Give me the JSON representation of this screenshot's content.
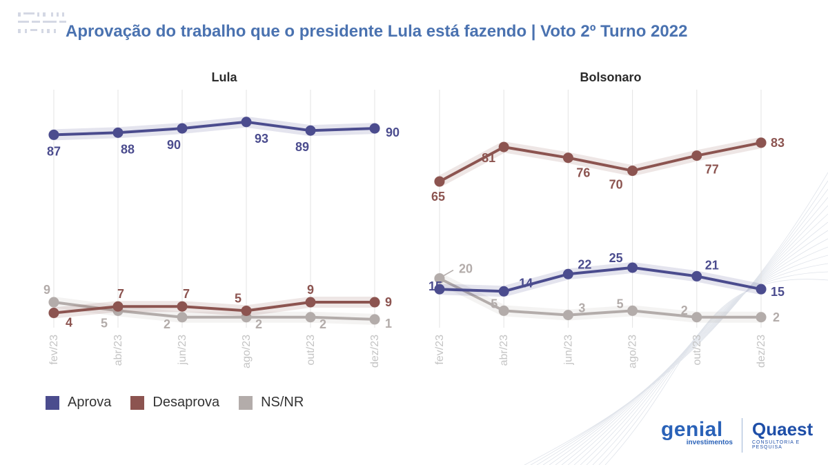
{
  "title": "Aprovação do trabalho que o presidente Lula está fazendo | Voto 2º Turno 2022",
  "colors": {
    "title": "#4a72b0",
    "aprova": "#4b4c8e",
    "desaprova": "#8c5450",
    "nsnr": "#b3acaa",
    "grid": "#e3e3e3",
    "axis_label": "#c4c4c4"
  },
  "legend": [
    {
      "label": "Aprova",
      "color": "#4b4c8e"
    },
    {
      "label": "Desaprova",
      "color": "#8c5450"
    },
    {
      "label": "NS/NR",
      "color": "#b3acaa"
    }
  ],
  "logos": {
    "genial_main": "genial",
    "genial_sub": "investimentos",
    "quaest_main": "Quaest",
    "quaest_sub": "CONSULTORIA E PESQUISA"
  },
  "chart_data": [
    {
      "type": "line",
      "title": "Lula",
      "x": [
        "fev/23",
        "abr/23",
        "jun/23",
        "ago/23",
        "out/23",
        "dez/23"
      ],
      "series": [
        {
          "name": "Aprova",
          "values": [
            87,
            88,
            90,
            93,
            89,
            90
          ]
        },
        {
          "name": "Desaprova",
          "values": [
            4,
            7,
            7,
            5,
            9,
            9
          ]
        },
        {
          "name": "NS/NR",
          "values": [
            9,
            5,
            2,
            2,
            2,
            1
          ]
        }
      ],
      "grid": "vertical",
      "legend": "bottom-left"
    },
    {
      "type": "line",
      "title": "Bolsonaro",
      "x": [
        "fev/23",
        "abr/23",
        "jun/23",
        "ago/23",
        "out/23",
        "dez/23"
      ],
      "series": [
        {
          "name": "Aprova",
          "values": [
            15,
            14,
            22,
            25,
            21,
            15
          ]
        },
        {
          "name": "Desaprova",
          "values": [
            65,
            81,
            76,
            70,
            77,
            83
          ]
        },
        {
          "name": "NS/NR",
          "values": [
            20,
            5,
            3,
            5,
            2,
            2
          ]
        }
      ],
      "grid": "vertical",
      "legend": "bottom-left"
    }
  ]
}
